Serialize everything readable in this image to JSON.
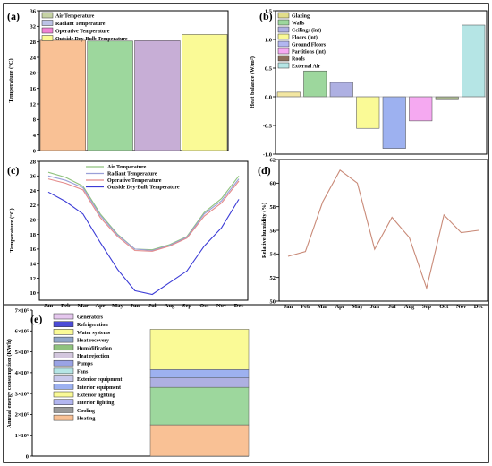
{
  "figure": {
    "charts": [
      {
        "id": "a",
        "panel_label": "(a)",
        "type": "bar",
        "categories": [
          "Air Temperature",
          "Radiant Temperature",
          "Operative Temperature",
          "Outside Dry-Bulb Temperature"
        ],
        "series": [
          {
            "name": "Temperature",
            "values": [
              28.4,
              28.2,
              28.3,
              29.9
            ]
          }
        ],
        "colors": [
          "#f9c195",
          "#9dd79d",
          "#c7aed6",
          "#fafa96"
        ],
        "legend": [
          "Air Temperature",
          "Radiant Temperature",
          "Operative Temperature",
          "Outside Dry-Bulb Temperature"
        ],
        "legend_colors": [
          "#c6d3a5",
          "#bcc3e6",
          "#ef83d4",
          "#fafa96"
        ],
        "ylabel": "Temperature (°C)",
        "ylim": [
          0,
          36
        ],
        "yticks": [
          0,
          4,
          8,
          12,
          16,
          20,
          24,
          28,
          32,
          36
        ],
        "legend_position": "top-left"
      },
      {
        "id": "b",
        "panel_label": "(b)",
        "type": "bar",
        "categories": [
          "Glazing",
          "Walls",
          "Ceilings (int)",
          "Floors (int)",
          "Ground Floors",
          "Partitions (int)",
          "Roofs",
          "External Air"
        ],
        "series": [
          {
            "name": "Heat balance",
            "values": [
              0.08,
              0.45,
              0.25,
              -0.55,
              -0.9,
              -0.42,
              -0.05,
              1.25
            ]
          }
        ],
        "colors": [
          "#f2e6a2",
          "#9dd79d",
          "#aeb0e2",
          "#fafa96",
          "#9db1f0",
          "#f5a9f1",
          "#a4b28a",
          "#b5e5e5"
        ],
        "legend": [
          "Glazing",
          "Walls",
          "Ceilings (int)",
          "Floors (int)",
          "Ground Floors",
          "Partitions (int)",
          "Roofs",
          "External Air"
        ],
        "legend_colors": [
          "#e2de8a",
          "#9dd79d",
          "#aeb0e2",
          "#fafa96",
          "#b2b6f0",
          "#f5a9f1",
          "#8c6f5c",
          "#b5e5e5"
        ],
        "ylabel": "Heat balance (W/m²)",
        "ylim": [
          -1.0,
          1.5
        ],
        "yticks": [
          -1.0,
          -0.5,
          0.0,
          0.5,
          1.0,
          1.5
        ],
        "legend_position": "top-left"
      },
      {
        "id": "c",
        "panel_label": "(c)",
        "type": "line",
        "x": [
          "Jan",
          "Feb",
          "Mar",
          "Apr",
          "May",
          "Jun",
          "Jul",
          "Aug",
          "Sep",
          "Oct",
          "Nov",
          "Dec"
        ],
        "series": [
          {
            "name": "Air Temperature",
            "color": "#8fc27d",
            "values": [
              26.5,
              25.8,
              24.6,
              20.8,
              18.0,
              16.0,
              15.9,
              16.6,
              17.7,
              21.0,
              22.9,
              26.0
            ]
          },
          {
            "name": "Radiant Temperature",
            "color": "#9aa0d8",
            "values": [
              26.0,
              25.4,
              24.4,
              20.6,
              17.9,
              16.0,
              15.8,
              16.5,
              17.6,
              20.8,
              22.6,
              25.6
            ]
          },
          {
            "name": "Operative Temperature",
            "color": "#e48a8a",
            "values": [
              25.6,
              25.0,
              24.1,
              20.3,
              17.7,
              15.8,
              15.7,
              16.4,
              17.5,
              20.5,
              22.3,
              25.3
            ]
          },
          {
            "name": "Outside Dry-Bulb Temperature",
            "color": "#3b3bd6",
            "values": [
              23.8,
              22.5,
              20.8,
              16.9,
              13.2,
              10.3,
              9.8,
              11.4,
              13.0,
              16.4,
              18.9,
              22.8
            ]
          }
        ],
        "ylabel": "Temperature (°C)",
        "ylim": [
          9,
          28
        ],
        "yticks": [
          10,
          12,
          14,
          16,
          18,
          20,
          22,
          24,
          26,
          28
        ],
        "legend_position": "top-center"
      },
      {
        "id": "d",
        "panel_label": "(d)",
        "type": "line",
        "x": [
          "Jan",
          "Feb",
          "Mar",
          "Apr",
          "May",
          "Jun",
          "Jul",
          "Aug",
          "Sep",
          "Oct",
          "Nov",
          "Dec"
        ],
        "series": [
          {
            "name": "Relative humidity",
            "color": "#c98a78",
            "values": [
              53.8,
              54.2,
              58.4,
              61.1,
              60.0,
              54.4,
              57.1,
              55.4,
              51.1,
              57.3,
              55.8,
              56.0
            ]
          }
        ],
        "ylabel": "Relative humidity (%)",
        "ylim": [
          50,
          62
        ],
        "yticks": [
          50,
          52,
          54,
          56,
          58,
          60,
          62
        ],
        "legend_position": "none"
      },
      {
        "id": "e",
        "panel_label": "(e)",
        "type": "bar",
        "stacked": true,
        "categories": [
          ""
        ],
        "series": [
          {
            "name": "Heating",
            "color": "#f9c195",
            "values": [
              150000
            ]
          },
          {
            "name": "Cooling",
            "color": "#9dd79d",
            "values": [
              180000
            ]
          },
          {
            "name": "Interior lighting",
            "color": "#aeb0e2",
            "values": [
              45000
            ]
          },
          {
            "name": "Exterior lighting",
            "color": "#fafa96",
            "values": [
              0
            ]
          },
          {
            "name": "Interior equipment",
            "color": "#9db1f0",
            "values": [
              40000
            ]
          },
          {
            "name": "Exterior equipment",
            "color": "#c9c9ec",
            "values": [
              0
            ]
          },
          {
            "name": "Fans",
            "color": "#b5e5e5",
            "values": [
              0
            ]
          },
          {
            "name": "Pumps",
            "color": "#9aa3e5",
            "values": [
              0
            ]
          },
          {
            "name": "Heat rejection",
            "color": "#d3c7de",
            "values": [
              0
            ]
          },
          {
            "name": "Humidification",
            "color": "#8fc27d",
            "values": [
              0
            ]
          },
          {
            "name": "Heat recovery",
            "color": "#90a6c9",
            "values": [
              0
            ]
          },
          {
            "name": "Water systems",
            "color": "#fafa96",
            "values": [
              193000
            ]
          },
          {
            "name": "Refrigeration",
            "color": "#4b4bd6",
            "values": [
              0
            ]
          },
          {
            "name": "Generators",
            "color": "#e5c7ee",
            "values": [
              0
            ]
          }
        ],
        "legend_order": [
          "Generators",
          "Refrigeration",
          "Water systems",
          "Heat recovery",
          "Humidification",
          "Heat rejection",
          "Pumps",
          "Fans",
          "Exterior equipment",
          "Interior equipment",
          "Exterior lighting",
          "Interior lighting",
          "Cooling",
          "Heating"
        ],
        "legend_colors": {
          "Generators": "#e5c7ee",
          "Refrigeration": "#4b4bd6",
          "Water systems": "#fafa96",
          "Heat recovery": "#90a6c9",
          "Humidification": "#8fc27d",
          "Heat rejection": "#d3c7de",
          "Pumps": "#9aa3e5",
          "Fans": "#b5e5e5",
          "Exterior equipment": "#c9c9ec",
          "Interior equipment": "#9db1f0",
          "Exterior lighting": "#fafa96",
          "Interior lighting": "#b2b6f0",
          "Cooling": "#9a9a9a",
          "Heating": "#f9c195"
        },
        "ylabel": "Annual energy consumption (KWh)",
        "ylim": [
          0,
          700000
        ],
        "yticks": [
          0,
          100000,
          200000,
          300000,
          400000,
          500000,
          600000,
          700000
        ],
        "ytick_labels": [
          "0",
          "1×10⁵",
          "2×10⁵",
          "3×10⁵",
          "4×10⁵",
          "5×10⁵",
          "6×10⁵",
          "7×10⁵"
        ],
        "legend_position": "top-left"
      }
    ]
  }
}
